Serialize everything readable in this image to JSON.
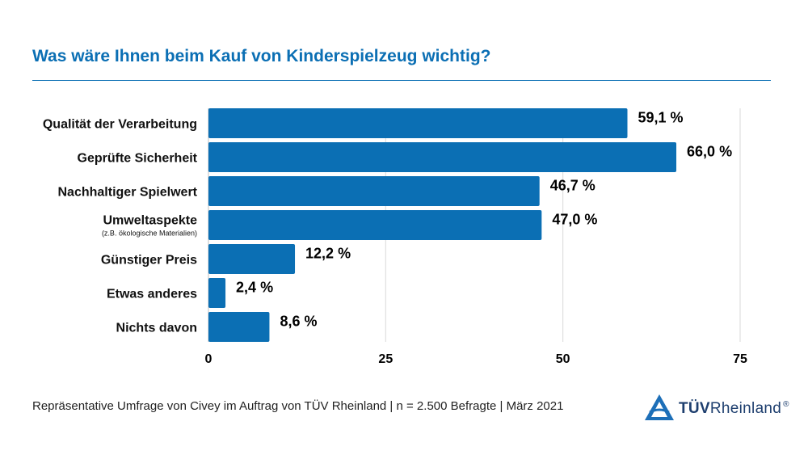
{
  "title": "Was wäre Ihnen beim Kauf von Kinderspielzeug wichtig?",
  "footer": "Repräsentative Umfrage von Civey im Auftrag von TÜV Rheinland | n = 2.500 Befragte | März 2021",
  "logo": {
    "strong": "TÜV",
    "rest": "Rheinland",
    "mark": "®"
  },
  "colors": {
    "bar": "#0b6fb4",
    "title": "#0b6fb4",
    "grid": "#d9d9d9",
    "logo": "#1d3e6e"
  },
  "chart_data": {
    "type": "bar",
    "orientation": "horizontal",
    "categories": [
      "Qualität der Verarbeitung",
      "Geprüfte Sicherheit",
      "Nachhaltiger Spielwert",
      "Umweltaspekte",
      "Günstiger Preis",
      "Etwas anderes",
      "Nichts davon"
    ],
    "sublabels": [
      "",
      "",
      "",
      "(z.B. ökologische Materialien)",
      "",
      "",
      ""
    ],
    "values": [
      59.1,
      66.0,
      46.7,
      47.0,
      12.2,
      2.4,
      8.6
    ],
    "value_labels": [
      "59,1 %",
      "66,0 %",
      "46,7 %",
      "47,0 %",
      "12,2 %",
      "2,4 %",
      "8,6 %"
    ],
    "xlim": [
      0,
      75
    ],
    "xticks": [
      "0",
      "25",
      "50",
      "75"
    ],
    "xtick_values": [
      0,
      25,
      50,
      75
    ],
    "grid": true,
    "title": "Was wäre Ihnen beim Kauf von Kinderspielzeug wichtig?"
  }
}
